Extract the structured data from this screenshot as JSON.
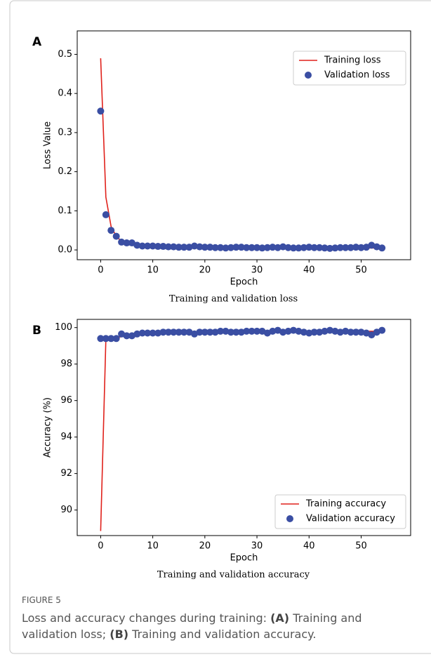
{
  "chart_data": [
    {
      "type": "line",
      "label": "A",
      "caption": "Training and validation loss",
      "xlabel": "Epoch",
      "ylabel": "Loss Value",
      "x": [
        0,
        1,
        2,
        3,
        4,
        5,
        6,
        7,
        8,
        9,
        10,
        11,
        12,
        13,
        14,
        15,
        16,
        17,
        18,
        19,
        20,
        21,
        22,
        23,
        24,
        25,
        26,
        27,
        28,
        29,
        30,
        31,
        32,
        33,
        34,
        35,
        36,
        37,
        38,
        39,
        40,
        41,
        42,
        43,
        44,
        45,
        46,
        47,
        48,
        49,
        50,
        51,
        52,
        53,
        54
      ],
      "series": [
        {
          "name": "Training loss",
          "color": "#e0211b",
          "kind": "line",
          "values": [
            0.49,
            0.135,
            0.06,
            0.035,
            0.022,
            0.016,
            0.013,
            0.011,
            0.01,
            0.009,
            0.009,
            0.008,
            0.008,
            0.008,
            0.007,
            0.007,
            0.007,
            0.007,
            0.007,
            0.006,
            0.006,
            0.006,
            0.006,
            0.006,
            0.006,
            0.006,
            0.005,
            0.005,
            0.005,
            0.005,
            0.005,
            0.005,
            0.005,
            0.005,
            0.005,
            0.005,
            0.005,
            0.005,
            0.005,
            0.005,
            0.005,
            0.005,
            0.005,
            0.005,
            0.005,
            0.005,
            0.005,
            0.005,
            0.005,
            0.005,
            0.005,
            0.005,
            0.005,
            0.005,
            0.005
          ]
        },
        {
          "name": "Validation loss",
          "color": "#3a4ea3",
          "kind": "markers",
          "values": [
            0.355,
            0.09,
            0.05,
            0.035,
            0.02,
            0.018,
            0.018,
            0.012,
            0.01,
            0.01,
            0.01,
            0.009,
            0.009,
            0.008,
            0.008,
            0.007,
            0.007,
            0.007,
            0.01,
            0.008,
            0.007,
            0.007,
            0.006,
            0.006,
            0.005,
            0.006,
            0.007,
            0.007,
            0.006,
            0.006,
            0.006,
            0.005,
            0.006,
            0.007,
            0.006,
            0.008,
            0.006,
            0.005,
            0.005,
            0.006,
            0.007,
            0.006,
            0.006,
            0.005,
            0.004,
            0.005,
            0.006,
            0.006,
            0.006,
            0.007,
            0.006,
            0.007,
            0.012,
            0.008,
            0.005
          ]
        }
      ],
      "xlim": [
        -4.5,
        59.5
      ],
      "xticks": [
        0,
        10,
        20,
        30,
        40,
        50
      ],
      "ylim": [
        -0.025,
        0.56
      ],
      "yticks": [
        {
          "value": 0,
          "label": "0.0"
        },
        0.1,
        0.2,
        0.3,
        0.4,
        0.5
      ],
      "legend": "upper right"
    },
    {
      "type": "line",
      "label": "B",
      "caption": "Training and validation accuracy",
      "xlabel": "Epoch",
      "ylabel": "Accuracy (%)",
      "x": [
        0,
        1,
        2,
        3,
        4,
        5,
        6,
        7,
        8,
        9,
        10,
        11,
        12,
        13,
        14,
        15,
        16,
        17,
        18,
        19,
        20,
        21,
        22,
        23,
        24,
        25,
        26,
        27,
        28,
        29,
        30,
        31,
        32,
        33,
        34,
        35,
        36,
        37,
        38,
        39,
        40,
        41,
        42,
        43,
        44,
        45,
        46,
        47,
        48,
        49,
        50,
        51,
        52,
        53,
        54
      ],
      "series": [
        {
          "name": "Training accuracy",
          "color": "#e0211b",
          "kind": "line",
          "values": [
            88.85,
            99.35,
            99.4,
            99.45,
            99.5,
            99.55,
            99.6,
            99.65,
            99.65,
            99.7,
            99.7,
            99.7,
            99.7,
            99.72,
            99.72,
            99.72,
            99.72,
            99.72,
            99.72,
            99.74,
            99.74,
            99.74,
            99.75,
            99.75,
            99.75,
            99.75,
            99.76,
            99.76,
            99.76,
            99.76,
            99.77,
            99.77,
            99.77,
            99.77,
            99.78,
            99.78,
            99.78,
            99.78,
            99.78,
            99.78,
            99.78,
            99.79,
            99.79,
            99.79,
            99.79,
            99.79,
            99.8,
            99.8,
            99.8,
            99.8,
            99.8,
            99.8,
            99.8,
            99.8,
            99.8
          ]
        },
        {
          "name": "Validation accuracy",
          "color": "#3a4ea3",
          "kind": "markers",
          "values": [
            99.4,
            99.4,
            99.4,
            99.4,
            99.65,
            99.55,
            99.55,
            99.65,
            99.7,
            99.7,
            99.7,
            99.7,
            99.75,
            99.75,
            99.75,
            99.75,
            99.75,
            99.75,
            99.65,
            99.75,
            99.75,
            99.75,
            99.75,
            99.8,
            99.8,
            99.75,
            99.75,
            99.75,
            99.8,
            99.8,
            99.8,
            99.8,
            99.7,
            99.8,
            99.85,
            99.75,
            99.8,
            99.85,
            99.8,
            99.75,
            99.7,
            99.75,
            99.75,
            99.8,
            99.85,
            99.8,
            99.75,
            99.8,
            99.75,
            99.75,
            99.75,
            99.7,
            99.6,
            99.75,
            99.85
          ]
        }
      ],
      "xlim": [
        -4.5,
        59.5
      ],
      "xticks": [
        0,
        10,
        20,
        30,
        40,
        50
      ],
      "ylim": [
        88.6,
        100.45
      ],
      "yticks": [
        90,
        92,
        94,
        96,
        98,
        100
      ],
      "legend": "lower right"
    }
  ],
  "figure": {
    "label": "FIGURE 5",
    "caption": [
      "Loss and accuracy changes during training: ",
      "(A)",
      " Training and validation loss; ",
      "(B)",
      " Training and validation accuracy."
    ]
  }
}
